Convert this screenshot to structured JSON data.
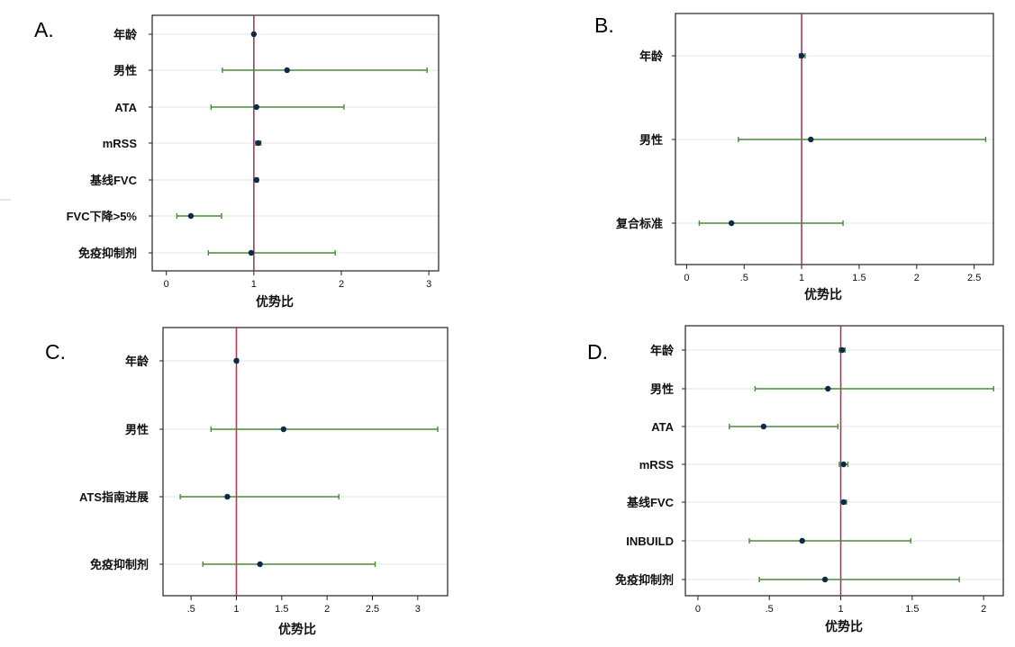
{
  "colors": {
    "reference_line": "#a0405a",
    "ci_line": "#4a8a3a",
    "point": "#0d2a4a",
    "grid": "#e4e4e4",
    "frame": "#222222"
  },
  "chart_data": [
    {
      "type": "forest",
      "panel": "A.",
      "xlabel": "优势比",
      "xlim": [
        -0.1,
        3.05
      ],
      "xticks": [
        {
          "v": 0,
          "t": "0"
        },
        {
          "v": 1,
          "t": "1"
        },
        {
          "v": 2,
          "t": "2"
        },
        {
          "v": 3,
          "t": "3"
        }
      ],
      "reference": 1,
      "rows": [
        {
          "label": "年龄",
          "or": 1.0,
          "lo": 0.99,
          "hi": 1.01
        },
        {
          "label": "男性",
          "or": 1.38,
          "lo": 0.64,
          "hi": 2.98
        },
        {
          "label": "ATA",
          "or": 1.03,
          "lo": 0.51,
          "hi": 2.03
        },
        {
          "label": "mRSS",
          "or": 1.05,
          "lo": 1.02,
          "hi": 1.08
        },
        {
          "label": "基线FVC",
          "or": 1.03,
          "lo": 1.01,
          "hi": 1.05
        },
        {
          "label": "FVC下降>5%",
          "or": 0.28,
          "lo": 0.12,
          "hi": 0.63
        },
        {
          "label": "免疫抑制剂",
          "or": 0.97,
          "lo": 0.48,
          "hi": 1.93
        }
      ]
    },
    {
      "type": "forest",
      "panel": "B.",
      "xlabel": "优势比",
      "xlim": [
        -0.05,
        2.62
      ],
      "xticks": [
        {
          "v": 0,
          "t": "0"
        },
        {
          "v": 0.5,
          "t": ".5"
        },
        {
          "v": 1,
          "t": "1"
        },
        {
          "v": 1.5,
          "t": "1.5"
        },
        {
          "v": 2,
          "t": "2"
        },
        {
          "v": 2.5,
          "t": "2.5"
        }
      ],
      "reference": 1,
      "rows": [
        {
          "label": "年龄",
          "or": 1.0,
          "lo": 0.98,
          "hi": 1.03
        },
        {
          "label": "男性",
          "or": 1.08,
          "lo": 0.45,
          "hi": 2.6
        },
        {
          "label": "复合标准",
          "or": 0.39,
          "lo": 0.11,
          "hi": 1.36
        }
      ]
    },
    {
      "type": "forest",
      "panel": "C.",
      "xlabel": "优势比",
      "xlim": [
        0.25,
        3.27
      ],
      "xticks": [
        {
          "v": 0.5,
          "t": ".5"
        },
        {
          "v": 1,
          "t": "1"
        },
        {
          "v": 1.5,
          "t": "1.5"
        },
        {
          "v": 2,
          "t": "2"
        },
        {
          "v": 2.5,
          "t": "2.5"
        },
        {
          "v": 3,
          "t": "3"
        }
      ],
      "reference": 1,
      "rows": [
        {
          "label": "年龄",
          "or": 1.0,
          "lo": 0.99,
          "hi": 1.02
        },
        {
          "label": "男性",
          "or": 1.52,
          "lo": 0.72,
          "hi": 3.22
        },
        {
          "label": "ATS指南进展",
          "or": 0.9,
          "lo": 0.38,
          "hi": 2.13
        },
        {
          "label": "免疫抑制剂",
          "or": 1.26,
          "lo": 0.63,
          "hi": 2.53
        }
      ]
    },
    {
      "type": "forest",
      "panel": "D.",
      "xlabel": "优势比",
      "xlim": [
        -0.05,
        2.1
      ],
      "xticks": [
        {
          "v": 0,
          "t": "0"
        },
        {
          "v": 0.5,
          "t": ".5"
        },
        {
          "v": 1,
          "t": "1"
        },
        {
          "v": 1.5,
          "t": "1.5"
        },
        {
          "v": 2,
          "t": "2"
        }
      ],
      "reference": 1,
      "rows": [
        {
          "label": "年龄",
          "or": 1.01,
          "lo": 0.99,
          "hi": 1.03
        },
        {
          "label": "男性",
          "or": 0.91,
          "lo": 0.4,
          "hi": 2.07
        },
        {
          "label": "ATA",
          "or": 0.46,
          "lo": 0.22,
          "hi": 0.98
        },
        {
          "label": "mRSS",
          "or": 1.02,
          "lo": 0.99,
          "hi": 1.05
        },
        {
          "label": "基线FVC",
          "or": 1.02,
          "lo": 1.0,
          "hi": 1.04
        },
        {
          "label": "INBUILD",
          "or": 0.73,
          "lo": 0.36,
          "hi": 1.49
        },
        {
          "label": "免疫抑制剂",
          "or": 0.89,
          "lo": 0.43,
          "hi": 1.83
        }
      ]
    }
  ]
}
